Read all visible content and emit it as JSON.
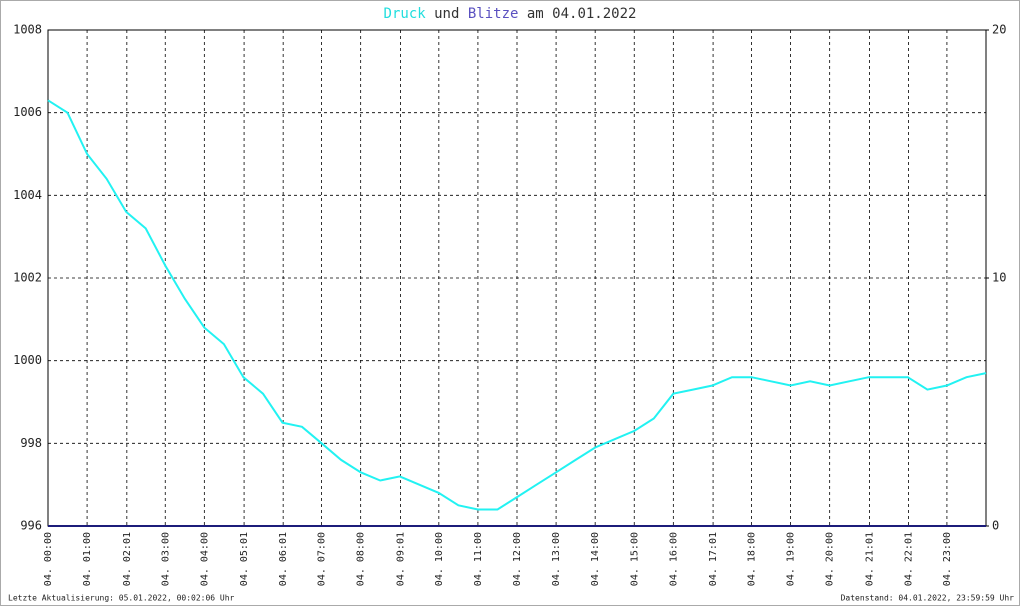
{
  "chart_data": {
    "type": "line",
    "title_connector": "und",
    "title_date": "am 04.01.2022",
    "footer_left": "Letzte Aktualisierung: 05.01.2022, 00:02:06 Uhr",
    "footer_right": "Datenstand: 04.01.2022, 23:59:59 Uhr",
    "x": [
      0,
      0.5,
      1,
      1.5,
      2,
      2.5,
      3,
      3.5,
      4,
      4.5,
      5,
      5.5,
      6,
      6.5,
      7,
      7.5,
      8,
      8.5,
      9,
      9.5,
      10,
      10.5,
      11,
      11.5,
      12,
      12.5,
      13,
      13.5,
      14,
      14.5,
      15,
      15.5,
      16,
      16.5,
      17,
      17.5,
      18,
      18.5,
      19,
      19.5,
      20,
      20.5,
      21,
      21.5,
      22,
      22.5,
      23,
      23.5,
      24
    ],
    "series": [
      {
        "name": "Druck",
        "color": "#22f2f2",
        "axis": "y",
        "values": [
          1006.3,
          1006.0,
          1005.0,
          1004.4,
          1003.6,
          1003.2,
          1002.3,
          1001.5,
          1000.8,
          1000.4,
          999.6,
          999.2,
          998.5,
          998.4,
          998.0,
          997.6,
          997.3,
          997.1,
          997.2,
          997.0,
          996.8,
          996.5,
          996.4,
          996.4,
          996.7,
          997.0,
          997.3,
          997.6,
          997.9,
          998.1,
          998.3,
          998.6,
          999.2,
          999.3,
          999.4,
          999.6,
          999.6,
          999.5,
          999.4,
          999.5,
          999.4,
          999.5,
          999.6,
          999.6,
          999.6,
          999.3,
          999.4,
          999.6,
          999.7
        ]
      },
      {
        "name": "Blitze",
        "color": "#1c1c7a",
        "axis": "y2",
        "values": [
          0,
          0,
          0,
          0,
          0,
          0,
          0,
          0,
          0,
          0,
          0,
          0,
          0,
          0,
          0,
          0,
          0,
          0,
          0,
          0,
          0,
          0,
          0,
          0,
          0,
          0,
          0,
          0,
          0,
          0,
          0,
          0,
          0,
          0,
          0,
          0,
          0,
          0,
          0,
          0,
          0,
          0,
          0,
          0,
          0,
          0,
          0,
          0,
          0
        ]
      }
    ],
    "title_colors": [
      "#22dede",
      "#333333",
      "#5a50c0",
      "#333333"
    ],
    "xlim": [
      0,
      24
    ],
    "xticks": [
      {
        "value": 0,
        "label": "04. 00:00"
      },
      {
        "value": 1,
        "label": "04. 01:00"
      },
      {
        "value": 2.017,
        "label": "04. 02:01"
      },
      {
        "value": 3,
        "label": "04. 03:00"
      },
      {
        "value": 4,
        "label": "04. 04:00"
      },
      {
        "value": 5.017,
        "label": "04. 05:01"
      },
      {
        "value": 6.017,
        "label": "04. 06:01"
      },
      {
        "value": 7,
        "label": "04. 07:00"
      },
      {
        "value": 8,
        "label": "04. 08:00"
      },
      {
        "value": 9.017,
        "label": "04. 09:01"
      },
      {
        "value": 10,
        "label": "04. 10:00"
      },
      {
        "value": 11,
        "label": "04. 11:00"
      },
      {
        "value": 12,
        "label": "04. 12:00"
      },
      {
        "value": 13,
        "label": "04. 13:00"
      },
      {
        "value": 14,
        "label": "04. 14:00"
      },
      {
        "value": 15,
        "label": "04. 15:00"
      },
      {
        "value": 16,
        "label": "04. 16:00"
      },
      {
        "value": 17.017,
        "label": "04. 17:01"
      },
      {
        "value": 18,
        "label": "04. 18:00"
      },
      {
        "value": 19,
        "label": "04. 19:00"
      },
      {
        "value": 20,
        "label": "04. 20:00"
      },
      {
        "value": 21.017,
        "label": "04. 21:01"
      },
      {
        "value": 22.017,
        "label": "04. 22:01"
      },
      {
        "value": 23,
        "label": "04. 23:00"
      }
    ],
    "ylim": [
      996,
      1008
    ],
    "yticks": [
      996,
      998,
      1000,
      1002,
      1004,
      1006,
      1008
    ],
    "y2lim": [
      0,
      20
    ],
    "y2ticks": [
      0,
      10,
      20
    ],
    "grid": true
  }
}
